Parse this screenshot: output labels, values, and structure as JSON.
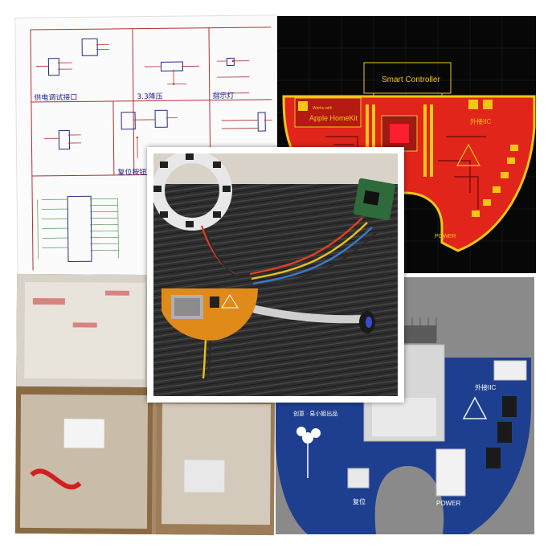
{
  "schematic": {
    "labels": {
      "debug_port": "供电调试接口",
      "regulator": "3.3降压",
      "indicator": "指示灯",
      "reset_button": "复位按钮"
    }
  },
  "pcb_red": {
    "title": "Smart Controller",
    "module_label": "Apple HomeKit",
    "module_sublabel": "Works with",
    "iic_label": "外接IIC",
    "power_label": "POWER"
  },
  "pcb_blue": {
    "iic_label": "外接IIC",
    "reset_label": "复位",
    "power_label": "POWER",
    "credit_text": "创意 · 易小姐出品"
  },
  "colors": {
    "pcb_red": "#e1251b",
    "pcb_yellow": "#f5c518",
    "pcb_blue": "#1e3f8f",
    "pcb_gray": "#8a8a8a"
  }
}
